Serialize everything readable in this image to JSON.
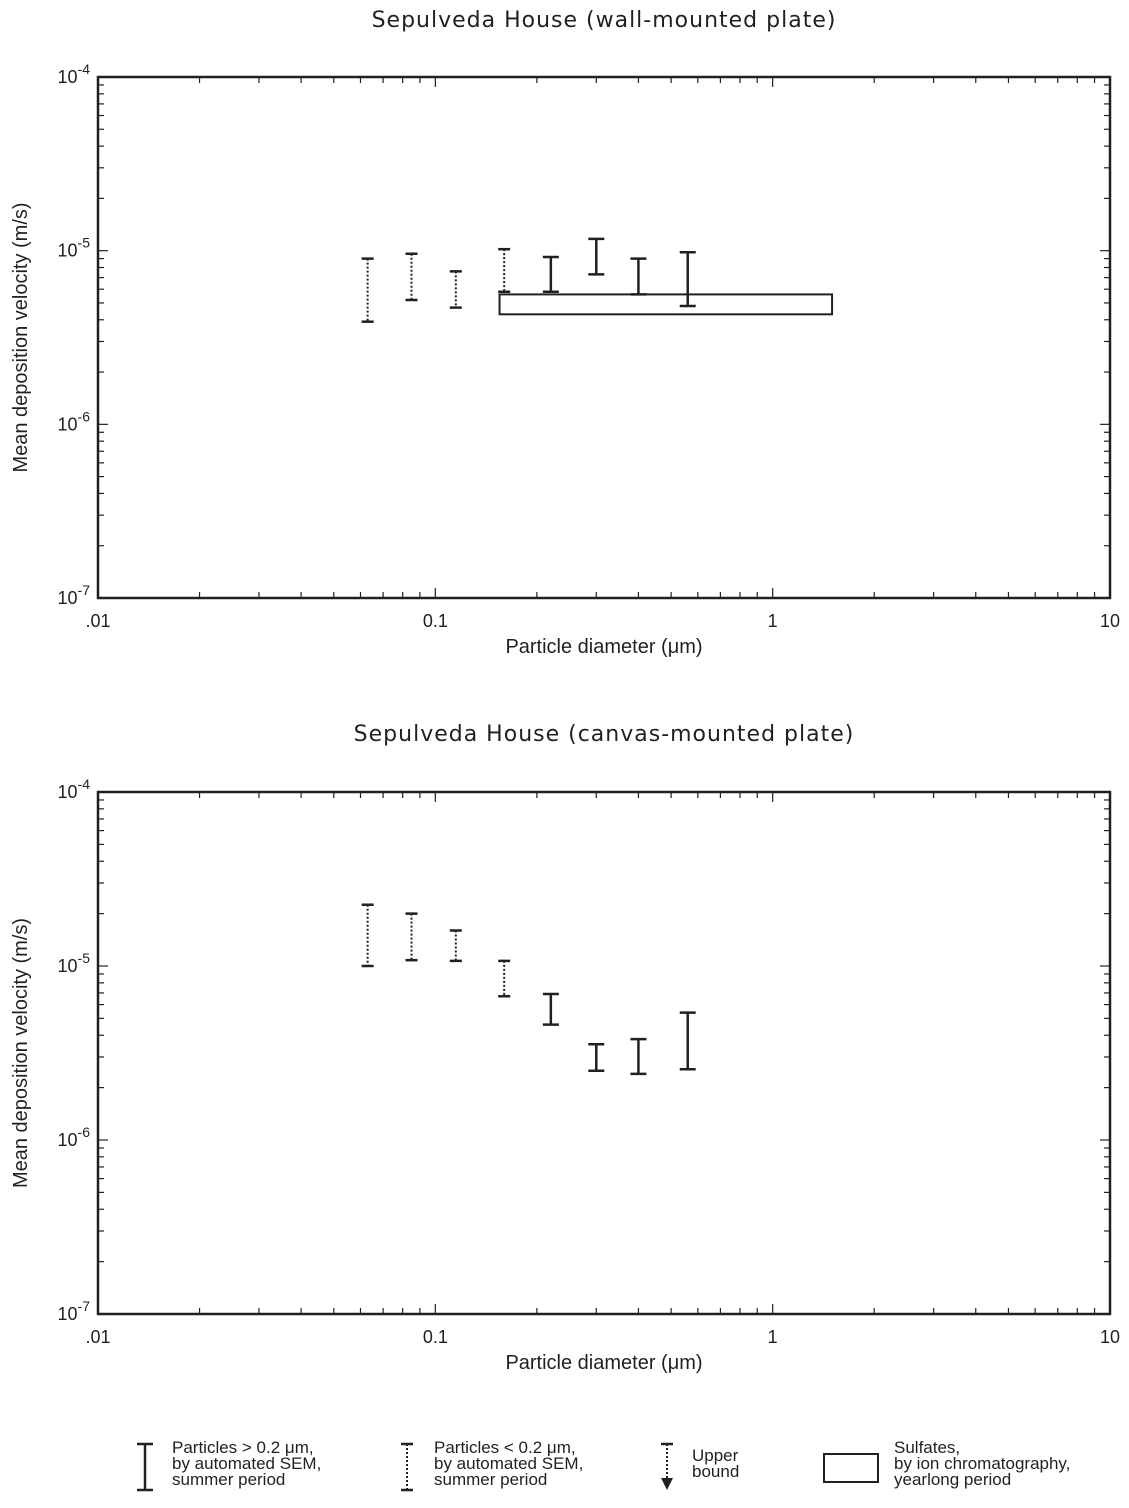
{
  "chart_data": [
    {
      "type": "errorbar",
      "title": "Sepulveda House (wall-mounted plate)",
      "xlabel": "Particle diameter (μm)",
      "ylabel": "Mean deposition velocity (m/s)",
      "xscale": "log",
      "yscale": "log",
      "xlim": [
        0.01,
        10
      ],
      "ylim": [
        1e-07,
        0.0001
      ],
      "xtick_labels": [
        ".01",
        "0.1",
        "1",
        "10"
      ],
      "ytick_labels": [
        "10-7",
        "10-6",
        "10-5",
        "10-4"
      ],
      "series": [
        {
          "name": "Particles < 0.2 μm, by automated SEM, summer period",
          "style": "dotted",
          "points": [
            {
              "x": 0.063,
              "low": 3.9e-06,
              "high": 9e-06
            },
            {
              "x": 0.085,
              "low": 5.2e-06,
              "high": 9.6e-06
            },
            {
              "x": 0.115,
              "low": 4.7e-06,
              "high": 7.6e-06
            },
            {
              "x": 0.16,
              "low": 5.8e-06,
              "high": 1.02e-05
            }
          ]
        },
        {
          "name": "Particles > 0.2 μm, by automated SEM, summer period",
          "style": "solid",
          "points": [
            {
              "x": 0.22,
              "low": 5.8e-06,
              "high": 9.2e-06
            },
            {
              "x": 0.3,
              "low": 7.3e-06,
              "high": 1.17e-05
            },
            {
              "x": 0.4,
              "low": 5.6e-06,
              "high": 9e-06
            },
            {
              "x": 0.56,
              "low": 4.8e-06,
              "high": 9.8e-06
            }
          ]
        },
        {
          "name": "Sulfates, by ion chromatography, yearlong period",
          "style": "box",
          "box": {
            "x_min": 0.155,
            "x_max": 1.5,
            "y_min": 4.3e-06,
            "y_max": 5.6e-06
          }
        }
      ]
    },
    {
      "type": "errorbar",
      "title": "Sepulveda House (canvas-mounted plate)",
      "xlabel": "Particle diameter (μm)",
      "ylabel": "Mean deposition velocity (m/s)",
      "xscale": "log",
      "yscale": "log",
      "xlim": [
        0.01,
        10
      ],
      "ylim": [
        1e-07,
        0.0001
      ],
      "xtick_labels": [
        ".01",
        "0.1",
        "1",
        "10"
      ],
      "ytick_labels": [
        "10-7",
        "10-6",
        "10-5",
        "10-4"
      ],
      "series": [
        {
          "name": "Particles < 0.2 μm, by automated SEM, summer period",
          "style": "dotted",
          "points": [
            {
              "x": 0.063,
              "low": 1e-05,
              "high": 2.25e-05
            },
            {
              "x": 0.085,
              "low": 1.08e-05,
              "high": 2e-05
            },
            {
              "x": 0.115,
              "low": 1.07e-05,
              "high": 1.6e-05
            },
            {
              "x": 0.16,
              "low": 6.7e-06,
              "high": 1.07e-05
            }
          ]
        },
        {
          "name": "Particles > 0.2 μm, by automated SEM, summer period",
          "style": "solid",
          "points": [
            {
              "x": 0.22,
              "low": 4.6e-06,
              "high": 6.9e-06
            },
            {
              "x": 0.3,
              "low": 2.5e-06,
              "high": 3.55e-06
            },
            {
              "x": 0.4,
              "low": 2.4e-06,
              "high": 3.8e-06
            },
            {
              "x": 0.56,
              "low": 2.55e-06,
              "high": 5.4e-06
            }
          ]
        }
      ]
    }
  ],
  "legend": {
    "placement": "bottom",
    "items": [
      {
        "icon": "solid-errorbar-icon",
        "lines": [
          "Particles > 0.2 μm,",
          "by automated SEM,",
          "summer period"
        ]
      },
      {
        "icon": "dotted-errorbar-icon",
        "lines": [
          "Particles < 0.2 μm,",
          "by automated SEM,",
          "summer period"
        ]
      },
      {
        "icon": "upper-bound-arrow-icon",
        "lines": [
          "Upper",
          "bound"
        ]
      },
      {
        "icon": "sulfate-box-icon",
        "lines": [
          "Sulfates,",
          "by ion chromatography,",
          "yearlong period"
        ]
      }
    ]
  },
  "colors": {
    "ink": "#231f20",
    "background": "#ffffff"
  }
}
